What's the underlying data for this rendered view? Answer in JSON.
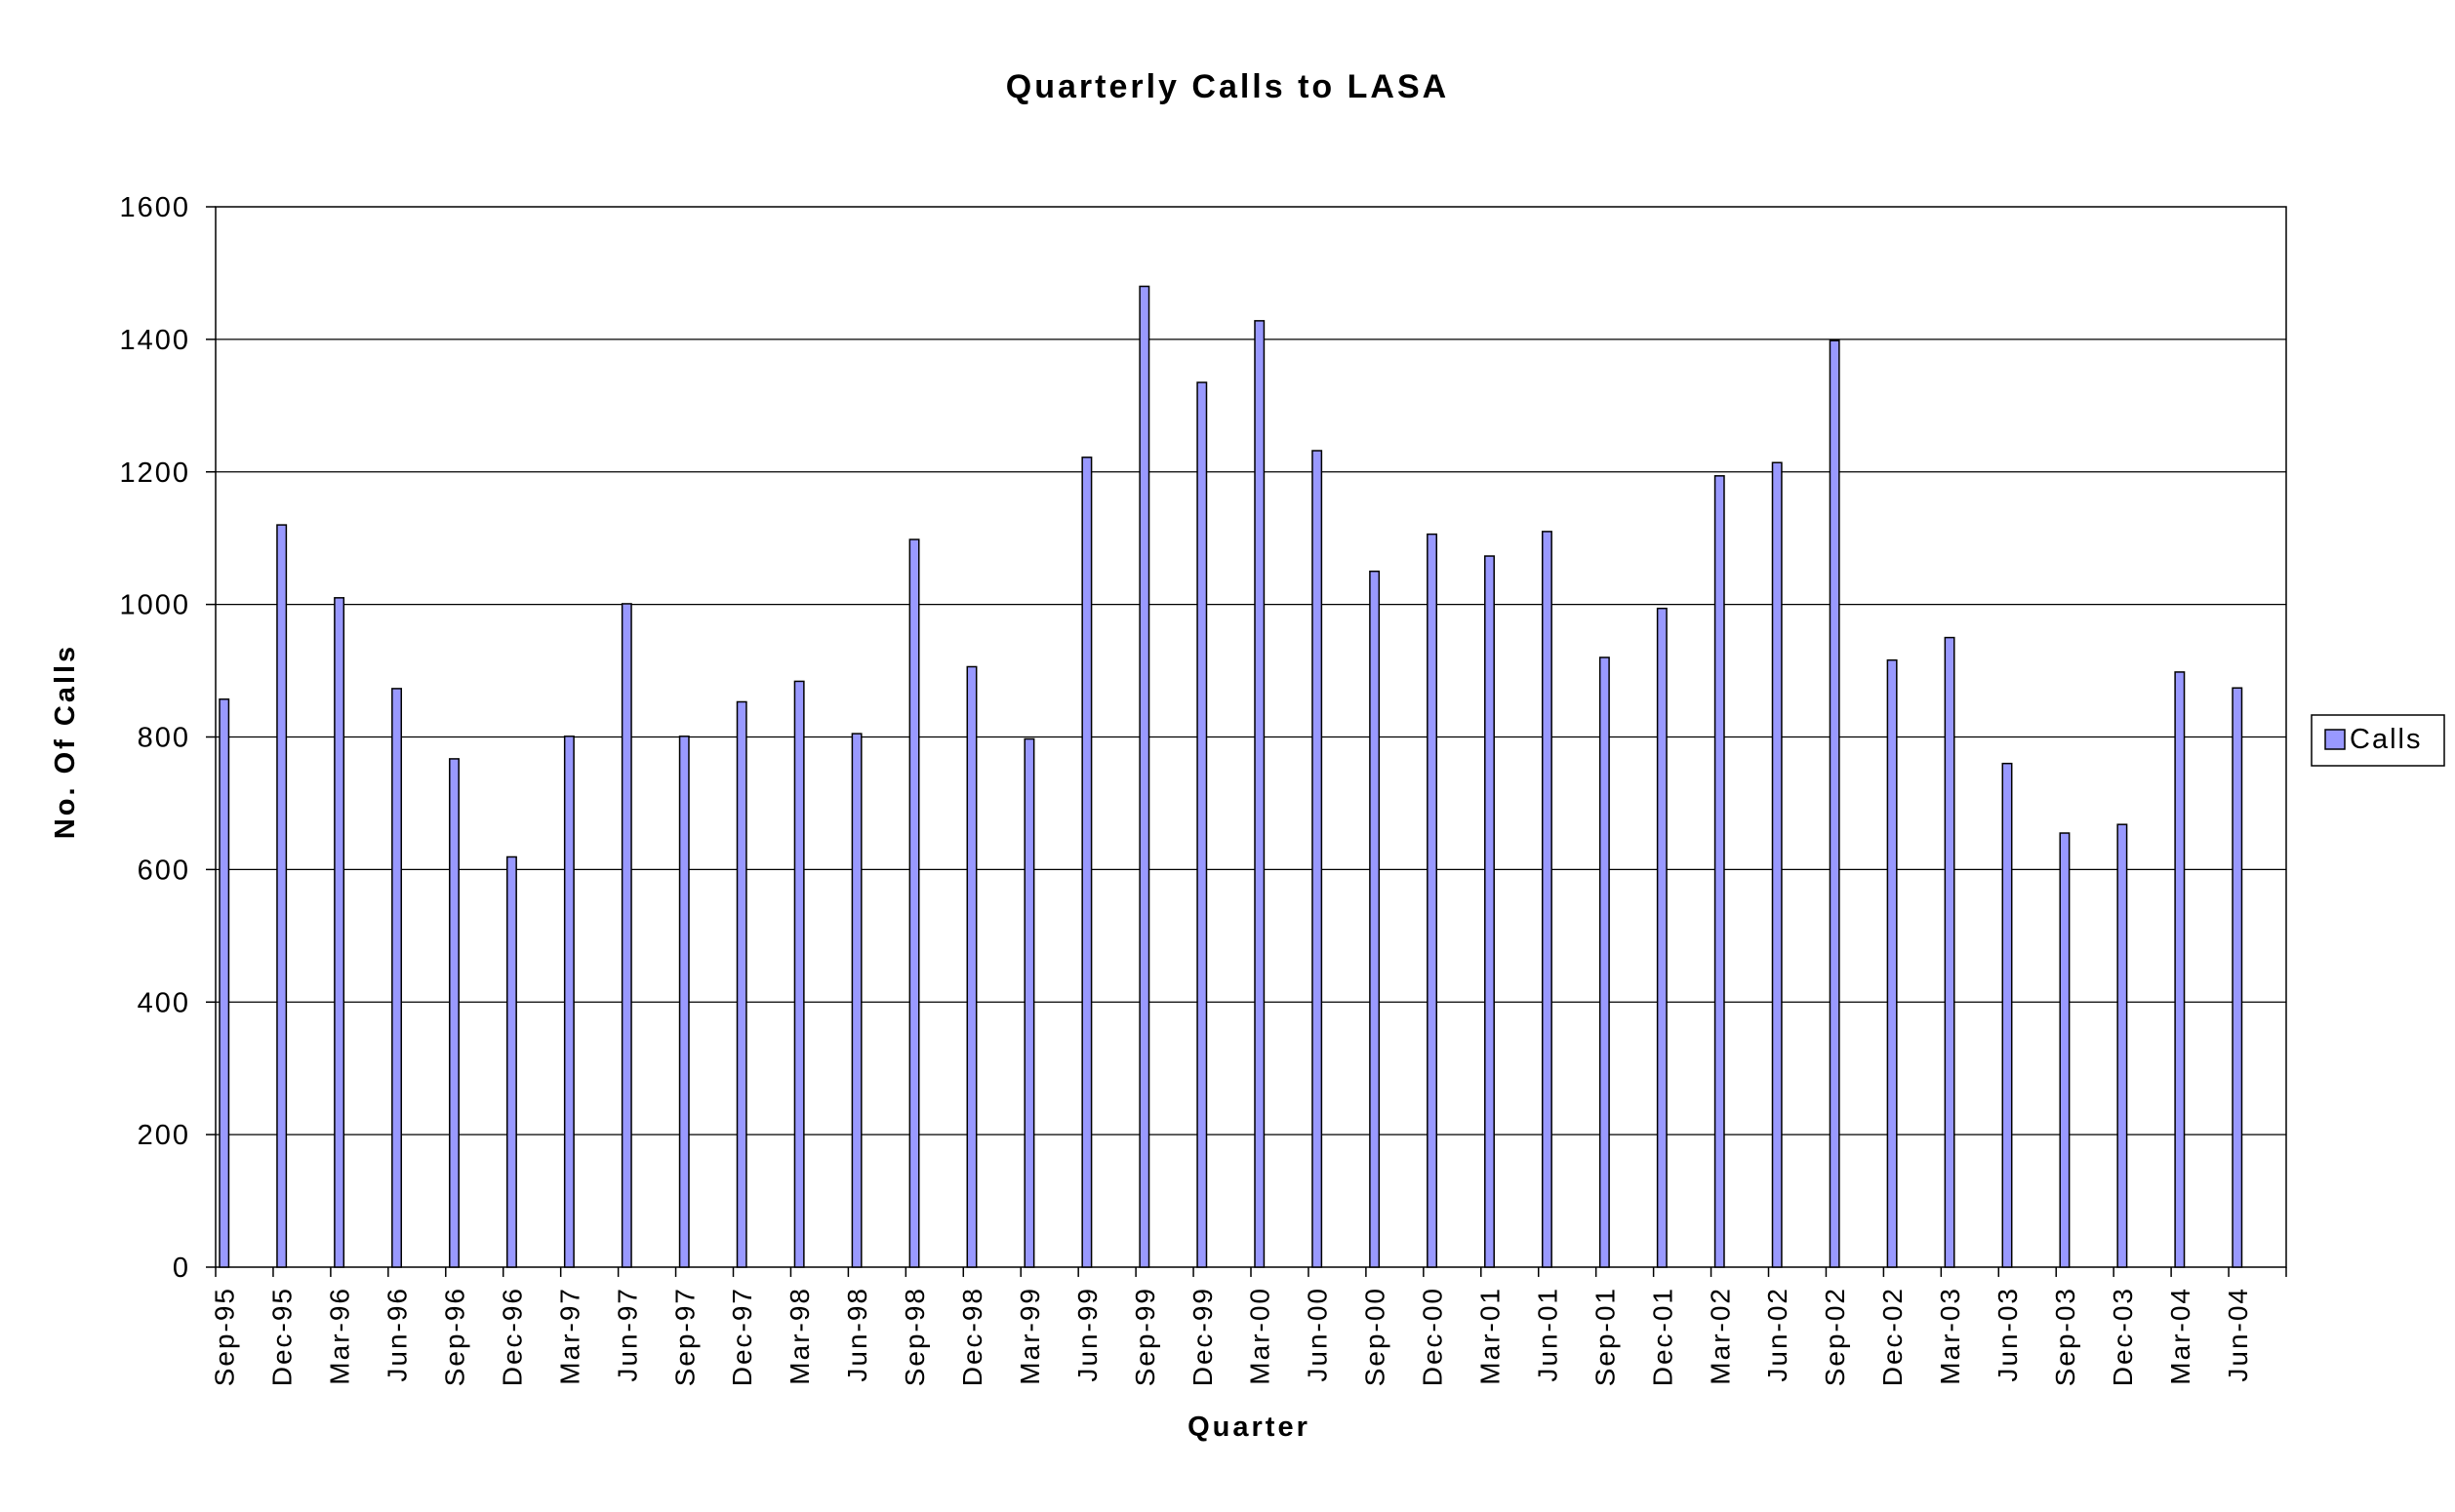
{
  "chart_data": {
    "type": "bar",
    "title": "Quarterly Calls to LASA",
    "xlabel": "Quarter",
    "ylabel": "No. Of Calls",
    "ylim": [
      0,
      1600
    ],
    "yticks": [
      0,
      200,
      400,
      600,
      800,
      1000,
      1200,
      1400,
      1600
    ],
    "ytick_labels": [
      "0",
      "200",
      "400",
      "600",
      "800",
      "1000",
      "1200",
      "1400",
      "1600"
    ],
    "grid": true,
    "legend_position": "right",
    "categories": [
      "Sep-95",
      "Dec-95",
      "Mar-96",
      "Jun-96",
      "Sep-96",
      "Dec-96",
      "Mar-97",
      "Jun-97",
      "Sep-97",
      "Dec-97",
      "Mar-98",
      "Jun-98",
      "Sep-98",
      "Dec-98",
      "Mar-99",
      "Jun-99",
      "Sep-99",
      "Dec-99",
      "Mar-00",
      "Jun-00",
      "Sep-00",
      "Dec-00",
      "Mar-01",
      "Jun-01",
      "Sep-01",
      "Dec-01",
      "Mar-02",
      "Jun-02",
      "Sep-02",
      "Dec-02",
      "Mar-03",
      "Jun-03",
      "Sep-03",
      "Dec-03",
      "Mar-04",
      "Jun-04"
    ],
    "series": [
      {
        "name": "Calls",
        "color": "#9999ff",
        "values": [
          857,
          1120,
          1010,
          873,
          767,
          619,
          801,
          1001,
          801,
          853,
          884,
          805,
          1098,
          906,
          797,
          1222,
          1480,
          1335,
          1428,
          1232,
          1050,
          1106,
          1073,
          1110,
          920,
          994,
          1194,
          1214,
          1398,
          916,
          950,
          760,
          655,
          668,
          898,
          874
        ]
      }
    ]
  },
  "colors": {
    "bar_fill": "#9999ff",
    "bar_stroke": "#000000",
    "grid": "#000000",
    "text": "#000000"
  }
}
